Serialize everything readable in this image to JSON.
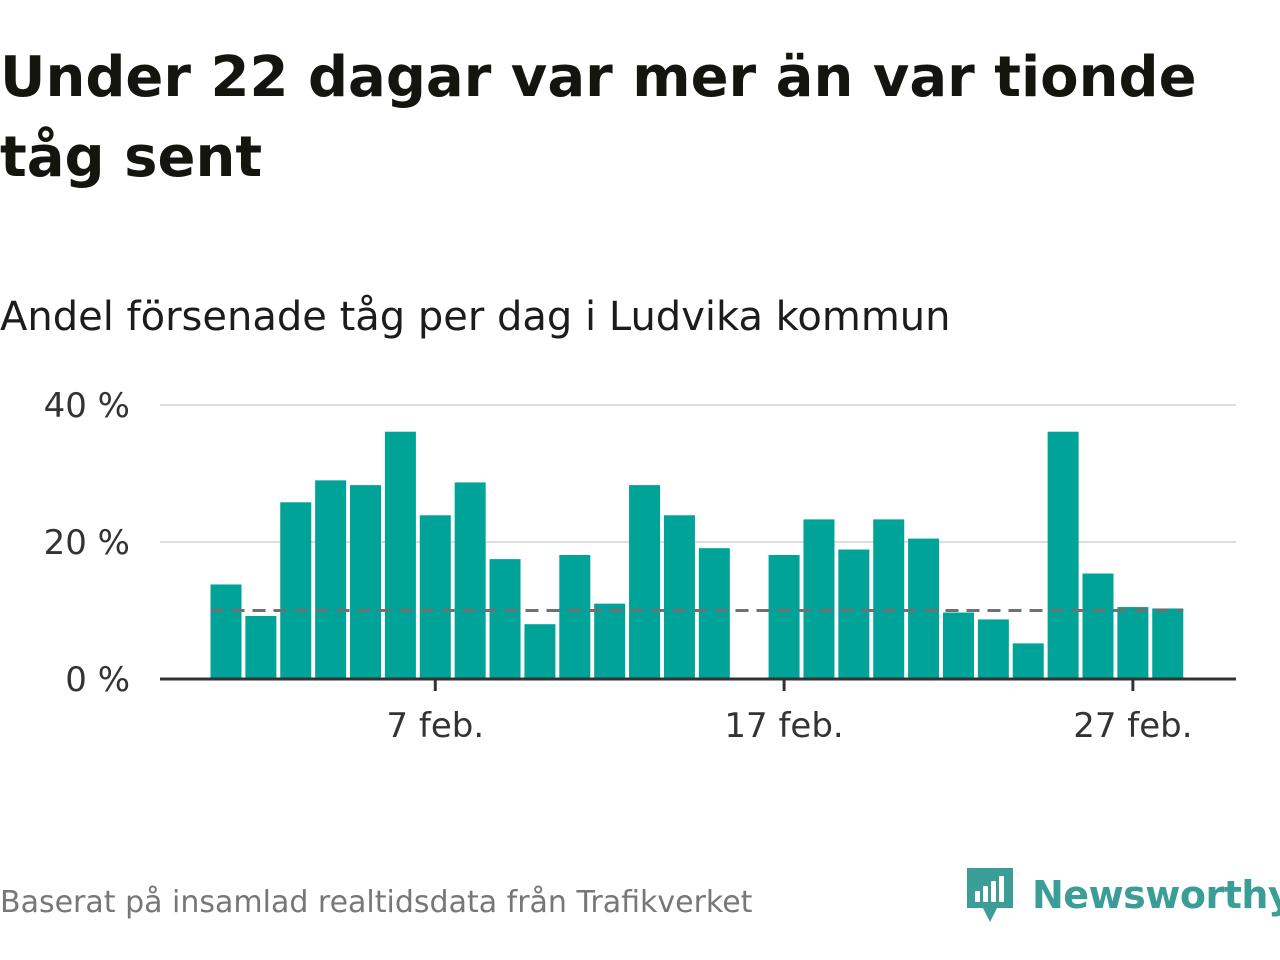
{
  "header": {
    "title": "Under 22 dagar var mer än var tionde tåg sent",
    "subtitle": "Andel försenade tåg per dag i Ludvika kommun"
  },
  "footer": {
    "source": "Baserat på insamlad realtidsdata från Trafikverket",
    "brand": "Newsworthy"
  },
  "colors": {
    "bar": "#00a398",
    "reference_line": "#707070",
    "grid": "#dddddd",
    "axis": "#333333",
    "brand": "#3a9d96"
  },
  "chart_data": {
    "type": "bar",
    "title": "Andel försenade tåg per dag i Ludvika kommun",
    "xlabel": "",
    "ylabel": "",
    "x": [
      "2021-02-01",
      "2021-02-02",
      "2021-02-03",
      "2021-02-04",
      "2021-02-05",
      "2021-02-06",
      "2021-02-07",
      "2021-02-08",
      "2021-02-09",
      "2021-02-10",
      "2021-02-11",
      "2021-02-12",
      "2021-02-13",
      "2021-02-14",
      "2021-02-15",
      "2021-02-16",
      "2021-02-17",
      "2021-02-18",
      "2021-02-19",
      "2021-02-20",
      "2021-02-21",
      "2021-02-22",
      "2021-02-23",
      "2021-02-24",
      "2021-02-25",
      "2021-02-26",
      "2021-02-27",
      "2021-02-28"
    ],
    "values": [
      13.8,
      9.2,
      25.8,
      29.0,
      28.3,
      36.1,
      23.9,
      28.7,
      17.5,
      8.0,
      18.1,
      11.0,
      28.3,
      23.9,
      19.1,
      null,
      18.1,
      23.3,
      18.9,
      23.3,
      20.5,
      9.7,
      8.7,
      5.2,
      36.1,
      15.4,
      10.5,
      10.3
    ],
    "ylim": [
      0,
      40
    ],
    "yticks": [
      0,
      20,
      40
    ],
    "ytick_labels": [
      "0 %",
      "20 %",
      "40 %"
    ],
    "xticks": [
      "2021-02-07",
      "2021-02-17",
      "2021-02-27"
    ],
    "xtick_labels": [
      "7 feb.",
      "17 feb.",
      "27 feb."
    ],
    "reference_line": 10,
    "grid": true,
    "legend": "none"
  }
}
